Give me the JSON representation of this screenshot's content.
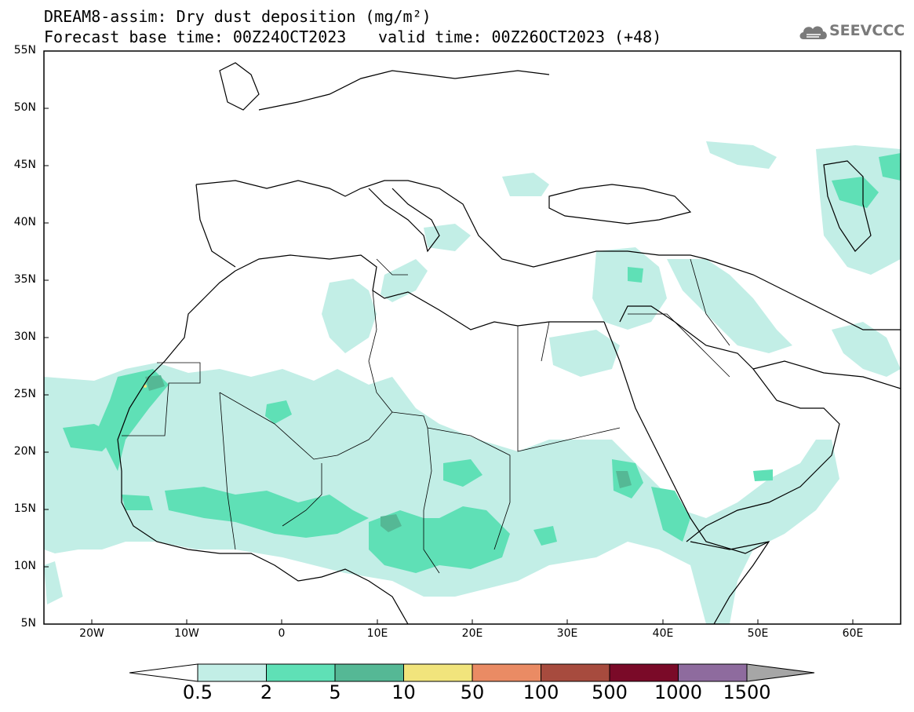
{
  "header": {
    "title_line1": "DREAM8-assim: Dry dust deposition (mg/m²)",
    "title_line2": "Forecast base time: 00Z24OCT2023",
    "valid_time": "valid time: 00Z26OCT2023 (+48)",
    "logo_text": "SEEVCCC"
  },
  "map": {
    "lat_labels": [
      "55N",
      "50N",
      "45N",
      "40N",
      "35N",
      "30N",
      "25N",
      "20N",
      "15N",
      "10N",
      "5N"
    ],
    "lon_labels": [
      "20W",
      "10W",
      "0",
      "10E",
      "20E",
      "30E",
      "40E",
      "50E",
      "60E"
    ],
    "colors": {
      "frame": "#000000",
      "coast": "#000000",
      "dust_0_5": "#c2eee6",
      "dust_2": "#5fe0b6",
      "dust_5": "#55b895",
      "dust_10": "#f1e47c"
    }
  },
  "colorbar": {
    "labels": [
      "0.5",
      "2",
      "5",
      "10",
      "50",
      "100",
      "500",
      "1000",
      "1500"
    ],
    "colors": [
      "#c2eee6",
      "#5fe0b6",
      "#55b895",
      "#f1e47c",
      "#ea8b64",
      "#a74b3e",
      "#7a0a28",
      "#8e6b9e",
      "#a6a6a6"
    ],
    "low_arrow_color": "#ffffff"
  }
}
